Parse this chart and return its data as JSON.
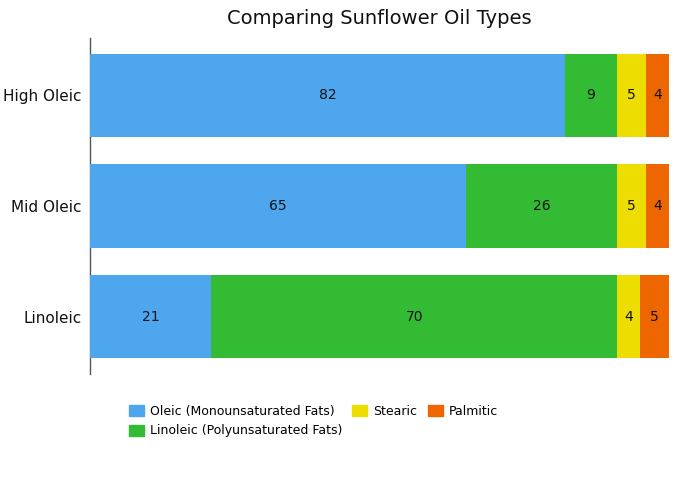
{
  "title": "Comparing Sunflower Oil Types",
  "categories": [
    "Linoleic",
    "Mid Oleic",
    "High Oleic"
  ],
  "series": {
    "Oleic (Monounsaturated Fats)": [
      21,
      65,
      82
    ],
    "Linoleic (Polyunsaturated Fats)": [
      70,
      26,
      9
    ],
    "Stearic": [
      4,
      5,
      5
    ],
    "Palmitic": [
      5,
      4,
      4
    ]
  },
  "colors": {
    "Oleic (Monounsaturated Fats)": "#4da6ee",
    "Linoleic (Polyunsaturated Fats)": "#33bb33",
    "Stearic": "#eedd00",
    "Palmitic": "#ee6600"
  },
  "bar_height": 0.75,
  "label_fontsize": 10,
  "title_fontsize": 14,
  "legend_fontsize": 9,
  "xlim": [
    0,
    100
  ],
  "figsize": [
    6.9,
    4.79
  ],
  "dpi": 100,
  "background_color": "#ffffff",
  "grid_color": "#dddddd",
  "spine_color": "#555555",
  "text_color": "#111111"
}
